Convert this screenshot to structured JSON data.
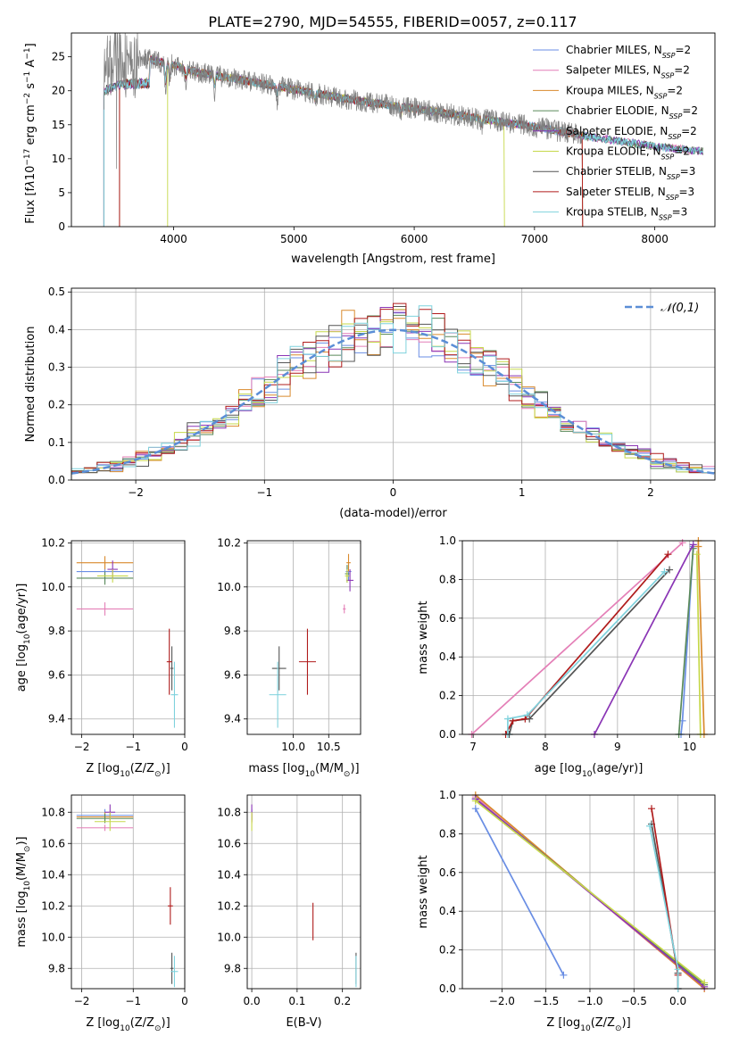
{
  "figure": {
    "title": "PLATE=2790, MJD=54555, FIBERID=0057, z=0.117"
  },
  "series_styles": [
    {
      "name": "Chabrier MILES, N_SSP=2",
      "color": "#6a8ee4"
    },
    {
      "name": "Salpeter MILES, N_SSP=2",
      "color": "#e47fb7"
    },
    {
      "name": "Kroupa MILES, N_SSP=2",
      "color": "#d98a2d"
    },
    {
      "name": "Chabrier ELODIE, N_SSP=2",
      "color": "#5a8a5a"
    },
    {
      "name": "Salpeter ELODIE, N_SSP=2",
      "color": "#8a35b5"
    },
    {
      "name": "Kroupa ELODIE, N_SSP=2",
      "color": "#c6d84a"
    },
    {
      "name": "Chabrier STELIB, N_SSP=3",
      "color": "#555555"
    },
    {
      "name": "Salpeter STELIB, N_SSP=3",
      "color": "#b01c1c"
    },
    {
      "name": "Kroupa STELIB, N_SSP=3",
      "color": "#7fd2dd"
    }
  ],
  "chart_data": [
    {
      "id": "spectrum",
      "type": "line",
      "title": "PLATE=2790, MJD=54555, FIBERID=0057, z=0.117",
      "xlabel": "wavelength [Angstrom, rest frame]",
      "ylabel_parts": [
        "Flux [f",
        "λ",
        "10",
        "−17",
        " erg cm",
        "−2",
        " s",
        "−1",
        " A",
        "−1",
        "]"
      ],
      "xlim": [
        3150,
        8500
      ],
      "ylim": [
        0,
        28.5
      ],
      "xticks": [
        4000,
        5000,
        6000,
        7000,
        8000
      ],
      "yticks": [
        0,
        5,
        10,
        15,
        20,
        25
      ],
      "legend_position": "top-right",
      "legend": [
        {
          "base": "Chabrier MILES, N",
          "sub": "SSP",
          "tail": "=2"
        },
        {
          "base": "Salpeter MILES, N",
          "sub": "SSP",
          "tail": "=2"
        },
        {
          "base": "Kroupa MILES, N",
          "sub": "SSP",
          "tail": "=2"
        },
        {
          "base": "Chabrier ELODIE, N",
          "sub": "SSP",
          "tail": "=2"
        },
        {
          "base": "Salpeter ELODIE, N",
          "sub": "SSP",
          "tail": "=2"
        },
        {
          "base": "Kroupa ELODIE, N",
          "sub": "SSP",
          "tail": "=2"
        },
        {
          "base": "Chabrier STELIB, N",
          "sub": "SSP",
          "tail": "=3"
        },
        {
          "base": "Salpeter STELIB, N",
          "sub": "SSP",
          "tail": "=3"
        },
        {
          "base": "Kroupa STELIB, N",
          "sub": "SSP",
          "tail": "=3"
        }
      ],
      "continuum": {
        "x": [
          3400,
          3600,
          3800,
          4000,
          4200,
          4500,
          5000,
          5500,
          6000,
          6500,
          7000,
          7500,
          8000,
          8500
        ],
        "y": [
          23.5,
          24.5,
          24.6,
          23.8,
          22.7,
          21.8,
          20.2,
          18.6,
          17.4,
          16.0,
          14.7,
          13.1,
          11.8,
          10.9
        ]
      },
      "model_ranges": [
        [
          3550,
          7400
        ],
        [
          3420,
          8400
        ],
        [
          3550,
          7400
        ],
        [
          3420,
          8400
        ],
        [
          3420,
          8400
        ],
        [
          3950,
          6750
        ],
        [
          3420,
          8400
        ],
        [
          3550,
          7400
        ],
        [
          3420,
          8400
        ]
      ],
      "data_range": [
        3420,
        7400
      ]
    },
    {
      "id": "residuals",
      "type": "histogram",
      "xlabel": "(data-model)/error",
      "ylabel": "Normed distribution",
      "xlim": [
        -2.5,
        2.5
      ],
      "ylim": [
        0,
        0.51
      ],
      "xticks": [
        -2,
        -1,
        0,
        1,
        2
      ],
      "xtick_labels": [
        "−2",
        "−1",
        "0",
        "1",
        "2"
      ],
      "yticks": [
        0.0,
        0.1,
        0.2,
        0.3,
        0.4,
        0.5
      ],
      "legend_position": "top-right",
      "gaussian_label": "𝒩(0,1)",
      "gaussian_color": "#5b8ed6",
      "bin_width": 0.1
    },
    {
      "id": "age-vs-Z",
      "type": "scatter",
      "xlabel_parts": [
        "Z [log",
        "10",
        "(Z/Z",
        "⊙",
        ")]"
      ],
      "ylabel_parts": [
        "age  [log",
        "10",
        "(age/yr)]"
      ],
      "xlim": [
        -2.2,
        0
      ],
      "ylim": [
        9.33,
        10.21
      ],
      "xticks": [
        -2,
        -1,
        0
      ],
      "xtick_labels": [
        "−2",
        "−1",
        "0"
      ],
      "yticks": [
        9.4,
        9.6,
        9.8,
        10.0,
        10.2
      ],
      "points": [
        {
          "s": 0,
          "x": -1.55,
          "xerr": 0.55,
          "y": 10.07,
          "yerr": 0.05
        },
        {
          "s": 1,
          "x": -1.55,
          "xerr": 0.55,
          "y": 9.9,
          "yerr": 0.03
        },
        {
          "s": 2,
          "x": -1.55,
          "xerr": 0.55,
          "y": 10.11,
          "yerr": 0.03
        },
        {
          "s": 3,
          "x": -1.55,
          "xerr": 0.55,
          "y": 10.04,
          "yerr": 0.03
        },
        {
          "s": 4,
          "x": -1.4,
          "xerr": 0.1,
          "y": 10.08,
          "yerr": 0.04
        },
        {
          "s": 5,
          "x": -1.4,
          "xerr": 0.3,
          "y": 10.05,
          "yerr": 0.03
        },
        {
          "s": 6,
          "x": -0.25,
          "xerr": 0.03,
          "y": 9.63,
          "yerr": 0.1
        },
        {
          "s": 7,
          "x": -0.3,
          "xerr": 0.05,
          "y": 9.66,
          "yerr": 0.15
        },
        {
          "s": 8,
          "x": -0.2,
          "xerr": 0.07,
          "y": 9.51,
          "yerr": 0.15
        }
      ]
    },
    {
      "id": "age-vs-mass",
      "type": "scatter",
      "xlabel_parts": [
        "mass [log",
        "10",
        "(M/M",
        "⊙",
        ")]"
      ],
      "xlim": [
        9.35,
        10.95
      ],
      "ylim": [
        9.33,
        10.21
      ],
      "xticks": [
        10.0,
        10.5
      ],
      "xtick_labels": [
        "10.0",
        "10.5"
      ],
      "yticks": [
        9.4,
        9.6,
        9.8,
        10.0,
        10.2
      ],
      "points": [
        {
          "s": 0,
          "x": 10.78,
          "xerr": 0.04,
          "y": 10.07,
          "yerr": 0.04
        },
        {
          "s": 1,
          "x": 10.72,
          "xerr": 0.02,
          "y": 9.9,
          "yerr": 0.02
        },
        {
          "s": 2,
          "x": 10.78,
          "xerr": 0.03,
          "y": 10.11,
          "yerr": 0.04
        },
        {
          "s": 3,
          "x": 10.76,
          "xerr": 0.03,
          "y": 10.06,
          "yerr": 0.04
        },
        {
          "s": 4,
          "x": 10.8,
          "xerr": 0.05,
          "y": 10.03,
          "yerr": 0.05
        },
        {
          "s": 5,
          "x": 10.76,
          "xerr": 0.03,
          "y": 10.05,
          "yerr": 0.03
        },
        {
          "s": 6,
          "x": 9.8,
          "xerr": 0.1,
          "y": 9.63,
          "yerr": 0.1
        },
        {
          "s": 7,
          "x": 10.2,
          "xerr": 0.12,
          "y": 9.66,
          "yerr": 0.15
        },
        {
          "s": 8,
          "x": 9.78,
          "xerr": 0.12,
          "y": 9.51,
          "yerr": 0.15
        }
      ]
    },
    {
      "id": "cumulative-age",
      "type": "line",
      "xlabel_parts": [
        "age  [log",
        "10",
        "(age/yr)]"
      ],
      "ylabel": "mass weight",
      "xlim": [
        6.85,
        10.35
      ],
      "ylim": [
        0,
        1.0
      ],
      "xticks": [
        7,
        8,
        9,
        10
      ],
      "yticks": [
        0.0,
        0.2,
        0.4,
        0.6,
        0.8,
        1.0
      ],
      "series": [
        {
          "s": 0,
          "x": [
            9.88,
            9.9,
            10.05
          ],
          "y": [
            0.0,
            0.07,
            0.97
          ]
        },
        {
          "s": 1,
          "x": [
            6.98,
            9.9
          ],
          "y": [
            0.0,
            0.99
          ]
        },
        {
          "s": 2,
          "x": [
            10.2,
            10.12,
            10.12
          ],
          "y": [
            0.0,
            0.97,
            1.0
          ]
        },
        {
          "s": 3,
          "x": [
            9.85,
            10.05
          ],
          "y": [
            0.0,
            0.96
          ]
        },
        {
          "s": 4,
          "x": [
            8.68,
            10.05
          ],
          "y": [
            0.0,
            0.98
          ]
        },
        {
          "s": 5,
          "x": [
            10.15,
            10.1
          ],
          "y": [
            0.0,
            0.93
          ]
        },
        {
          "s": 6,
          "x": [
            7.5,
            7.55,
            7.78,
            9.72
          ],
          "y": [
            0.0,
            0.07,
            0.08,
            0.85
          ]
        },
        {
          "s": 7,
          "x": [
            7.45,
            7.55,
            7.72,
            9.7
          ],
          "y": [
            0.0,
            0.07,
            0.08,
            0.93
          ]
        },
        {
          "s": 8,
          "x": [
            7.48,
            7.48,
            7.75,
            9.65
          ],
          "y": [
            0.0,
            0.08,
            0.1,
            0.84
          ]
        }
      ]
    },
    {
      "id": "mass-vs-Z",
      "type": "scatter",
      "xlabel_parts": [
        "Z [log",
        "10",
        "(Z/Z",
        "⊙",
        ")]"
      ],
      "ylabel_parts": [
        "mass [log",
        "10",
        "(M/M",
        "⊙",
        ")]"
      ],
      "xlim": [
        -2.2,
        0
      ],
      "ylim": [
        9.67,
        10.91
      ],
      "xticks": [
        -2,
        -1,
        0
      ],
      "xtick_labels": [
        "−2",
        "−1",
        "0"
      ],
      "yticks": [
        9.8,
        10.0,
        10.2,
        10.4,
        10.6,
        10.8
      ],
      "points": [
        {
          "s": 0,
          "x": -1.55,
          "xerr": 0.55,
          "y": 10.78,
          "yerr": 0.04
        },
        {
          "s": 1,
          "x": -1.55,
          "xerr": 0.55,
          "y": 10.7,
          "yerr": 0.02
        },
        {
          "s": 2,
          "x": -1.55,
          "xerr": 0.55,
          "y": 10.77,
          "yerr": 0.03
        },
        {
          "s": 3,
          "x": -1.55,
          "xerr": 0.55,
          "y": 10.76,
          "yerr": 0.03
        },
        {
          "s": 4,
          "x": -1.45,
          "xerr": 0.1,
          "y": 10.8,
          "yerr": 0.05
        },
        {
          "s": 5,
          "x": -1.45,
          "xerr": 0.3,
          "y": 10.74,
          "yerr": 0.06
        },
        {
          "s": 6,
          "x": -0.25,
          "xerr": 0.03,
          "y": 9.8,
          "yerr": 0.1
        },
        {
          "s": 7,
          "x": -0.28,
          "xerr": 0.05,
          "y": 10.2,
          "yerr": 0.12
        },
        {
          "s": 8,
          "x": -0.2,
          "xerr": 0.07,
          "y": 9.78,
          "yerr": 0.1
        }
      ]
    },
    {
      "id": "mass-vs-EBV",
      "type": "scatter",
      "xlabel": "E(B-V)",
      "xlim": [
        -0.01,
        0.24
      ],
      "ylim": [
        9.67,
        10.91
      ],
      "xticks": [
        0.0,
        0.1,
        0.2
      ],
      "xtick_labels": [
        "0.0",
        "0.1",
        "0.2"
      ],
      "yticks": [
        9.8,
        10.0,
        10.2,
        10.4,
        10.6,
        10.8
      ],
      "points": [
        {
          "s": 0,
          "x": 0.0,
          "y": 10.78,
          "yerr": 0.04
        },
        {
          "s": 1,
          "x": 0.0,
          "y": 10.77,
          "yerr": 0.03
        },
        {
          "s": 2,
          "x": 0.0,
          "y": 10.76,
          "yerr": 0.03
        },
        {
          "s": 4,
          "x": 0.0,
          "y": 10.8,
          "yerr": 0.05
        },
        {
          "s": 5,
          "x": 0.0,
          "y": 10.74,
          "yerr": 0.06
        },
        {
          "s": 6,
          "x": 0.23,
          "y": 9.8,
          "yerr": 0.1
        },
        {
          "s": 7,
          "x": 0.135,
          "y": 10.1,
          "yerr": 0.12
        },
        {
          "s": 8,
          "x": 0.23,
          "y": 9.78,
          "yerr": 0.1
        }
      ]
    },
    {
      "id": "cumulative-Z",
      "type": "line",
      "xlabel_parts": [
        "Z [log",
        "10",
        "(Z/Z",
        "⊙",
        ")]"
      ],
      "ylabel": "mass weight",
      "xlim": [
        -2.45,
        0.42
      ],
      "ylim": [
        0,
        1.0
      ],
      "xticks": [
        -2.0,
        -1.5,
        -1.0,
        -0.5,
        0.0
      ],
      "xtick_labels": [
        "−2.0",
        "−1.5",
        "−1.0",
        "−0.5",
        "0.0"
      ],
      "yticks": [
        0.0,
        0.2,
        0.4,
        0.6,
        0.8,
        1.0
      ],
      "series": [
        {
          "s": 0,
          "x": [
            -2.3,
            -1.3
          ],
          "y": [
            0.93,
            0.07
          ]
        },
        {
          "s": 1,
          "x": [
            -2.3,
            0.3
          ],
          "y": [
            0.99,
            0.0
          ]
        },
        {
          "s": 2,
          "x": [
            -2.3,
            0.3
          ],
          "y": [
            1.0,
            0.0
          ]
        },
        {
          "s": 3,
          "x": [
            -2.3,
            0.3
          ],
          "y": [
            0.98,
            0.02
          ]
        },
        {
          "s": 4,
          "x": [
            -2.3,
            0.3
          ],
          "y": [
            0.98,
            0.01
          ]
        },
        {
          "s": 5,
          "x": [
            -2.3,
            0.3
          ],
          "y": [
            0.97,
            0.03
          ]
        },
        {
          "s": 6,
          "x": [
            -0.3,
            0.0,
            0.0
          ],
          "y": [
            0.85,
            0.08,
            0.0
          ]
        },
        {
          "s": 7,
          "x": [
            -0.3,
            0.0,
            0.0
          ],
          "y": [
            0.93,
            0.07,
            0.0
          ]
        },
        {
          "s": 8,
          "x": [
            -0.32,
            0.0,
            0.0
          ],
          "y": [
            0.84,
            0.1,
            0.0
          ]
        }
      ]
    }
  ]
}
